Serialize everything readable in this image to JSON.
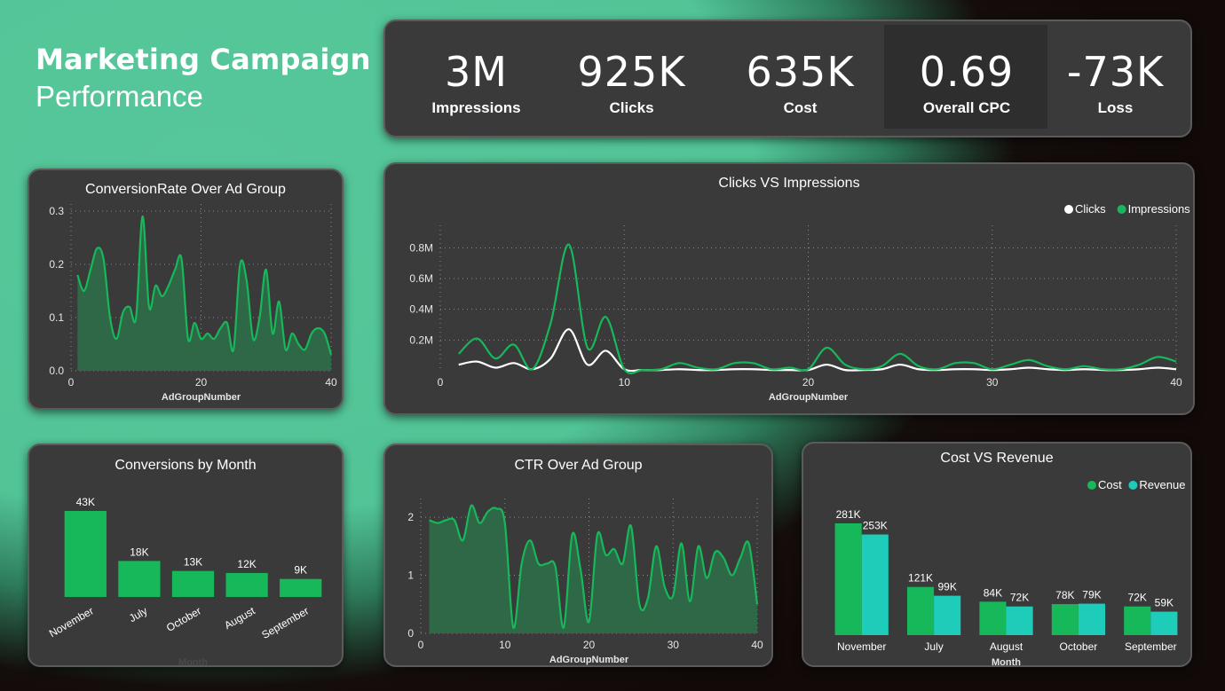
{
  "header": {
    "title": "Marketing Campaign",
    "subtitle": "Performance"
  },
  "kpis": [
    {
      "value": "3M",
      "label": "Impressions"
    },
    {
      "value": "925K",
      "label": "Clicks"
    },
    {
      "value": "635K",
      "label": "Cost"
    },
    {
      "value": "0.69",
      "label": "Overall CPC"
    },
    {
      "value": "-73K",
      "label": "Loss"
    }
  ],
  "colors": {
    "green": "#16b85a",
    "teal": "#1dcdba",
    "white": "#ffffff",
    "card": "#3a3a3a"
  },
  "chart_data": [
    {
      "id": "conv-rate",
      "type": "area",
      "title": "ConversionRate Over Ad Group",
      "xlabel": "AdGroupNumber",
      "ylabel": "",
      "xlim": [
        0,
        40
      ],
      "ylim": [
        0,
        0.3
      ],
      "xticks": [
        0,
        20,
        40
      ],
      "yticks": [
        0.0,
        0.1,
        0.2,
        0.3
      ],
      "ytick_labels": [
        "0.0",
        "0.1",
        "0.2",
        "0.3"
      ],
      "x": [
        1,
        2,
        3,
        4,
        5,
        6,
        7,
        8,
        9,
        10,
        11,
        12,
        13,
        14,
        15,
        16,
        17,
        18,
        19,
        20,
        21,
        22,
        23,
        24,
        25,
        26,
        27,
        28,
        29,
        30,
        31,
        32,
        33,
        34,
        35,
        36,
        37,
        38,
        39,
        40
      ],
      "series": [
        {
          "values": [
            0.18,
            0.15,
            0.19,
            0.23,
            0.21,
            0.1,
            0.06,
            0.11,
            0.12,
            0.1,
            0.29,
            0.12,
            0.16,
            0.14,
            0.16,
            0.19,
            0.21,
            0.06,
            0.09,
            0.06,
            0.07,
            0.06,
            0.08,
            0.09,
            0.04,
            0.2,
            0.17,
            0.06,
            0.1,
            0.19,
            0.07,
            0.13,
            0.04,
            0.07,
            0.05,
            0.04,
            0.07,
            0.08,
            0.07,
            0.03
          ]
        }
      ]
    },
    {
      "id": "clicks-impr",
      "type": "line",
      "title": "Clicks VS Impressions",
      "xlabel": "AdGroupNumber",
      "ylabel": "",
      "xlim": [
        0,
        40
      ],
      "ylim": [
        0,
        0.9
      ],
      "xticks": [
        0,
        10,
        20,
        30,
        40
      ],
      "yticks": [
        0.2,
        0.4,
        0.6,
        0.8
      ],
      "ytick_labels": [
        "0.2M",
        "0.4M",
        "0.6M",
        "0.8M"
      ],
      "legend": "top-right",
      "x": [
        1,
        2,
        3,
        4,
        5,
        6,
        7,
        8,
        9,
        10,
        11,
        12,
        13,
        14,
        15,
        16,
        17,
        18,
        19,
        20,
        21,
        22,
        23,
        24,
        25,
        26,
        27,
        28,
        29,
        30,
        31,
        32,
        33,
        34,
        35,
        36,
        37,
        38,
        39,
        40
      ],
      "series": [
        {
          "name": "Clicks",
          "color": "#ffffff",
          "values": [
            0.04,
            0.06,
            0.02,
            0.05,
            0.01,
            0.08,
            0.27,
            0.04,
            0.13,
            0.01,
            0.005,
            0.005,
            0.01,
            0.005,
            0.005,
            0.01,
            0.01,
            0.005,
            0.005,
            0.005,
            0.04,
            0.005,
            0.005,
            0.01,
            0.04,
            0.01,
            0.005,
            0.01,
            0.01,
            0.005,
            0.01,
            0.02,
            0.01,
            0.005,
            0.01,
            0.005,
            0.005,
            0.01,
            0.02,
            0.01
          ]
        },
        {
          "name": "Impressions",
          "color": "#16b85a",
          "values": [
            0.11,
            0.21,
            0.08,
            0.17,
            0.01,
            0.31,
            0.82,
            0.15,
            0.35,
            0.01,
            0.005,
            0.01,
            0.05,
            0.02,
            0.01,
            0.05,
            0.05,
            0.01,
            0.02,
            0.01,
            0.15,
            0.04,
            0.01,
            0.03,
            0.11,
            0.03,
            0.01,
            0.05,
            0.05,
            0.01,
            0.04,
            0.07,
            0.03,
            0.01,
            0.03,
            0.01,
            0.01,
            0.04,
            0.09,
            0.06
          ]
        }
      ]
    },
    {
      "id": "conv-month",
      "type": "bar",
      "title": "Conversions by Month",
      "xlabel": "Month",
      "ylabel": "",
      "categories": [
        "November",
        "July",
        "October",
        "August",
        "September"
      ],
      "values": [
        43,
        18,
        13,
        12,
        9
      ],
      "data_labels": [
        "43K",
        "18K",
        "13K",
        "12K",
        "9K"
      ],
      "ylim": [
        0,
        43
      ]
    },
    {
      "id": "ctr",
      "type": "area",
      "title": "CTR Over Ad Group",
      "xlabel": "AdGroupNumber",
      "ylabel": "",
      "xlim": [
        0,
        40
      ],
      "ylim": [
        0,
        2.2
      ],
      "xticks": [
        0,
        10,
        20,
        30,
        40
      ],
      "yticks": [
        0,
        1,
        2
      ],
      "ytick_labels": [
        "0",
        "1",
        "2"
      ],
      "x": [
        1,
        2,
        3,
        4,
        5,
        6,
        7,
        8,
        9,
        10,
        11,
        12,
        13,
        14,
        15,
        16,
        17,
        18,
        19,
        20,
        21,
        22,
        23,
        24,
        25,
        26,
        27,
        28,
        29,
        30,
        31,
        32,
        33,
        34,
        35,
        36,
        37,
        38,
        39,
        40
      ],
      "series": [
        {
          "values": [
            1.95,
            1.9,
            1.95,
            1.95,
            1.6,
            2.2,
            1.9,
            2.1,
            2.15,
            1.9,
            0.1,
            1.2,
            1.6,
            1.2,
            1.2,
            1.15,
            0.1,
            1.7,
            1.1,
            0.2,
            1.7,
            1.35,
            1.45,
            1.2,
            1.85,
            0.5,
            0.6,
            1.5,
            0.8,
            0.65,
            1.55,
            0.55,
            1.5,
            0.95,
            1.4,
            1.3,
            1.0,
            1.3,
            1.55,
            0.5
          ]
        }
      ]
    },
    {
      "id": "cost-rev",
      "type": "bar",
      "title": "Cost VS Revenue",
      "xlabel": "Month",
      "ylabel": "",
      "legend": "top-right",
      "categories": [
        "November",
        "July",
        "August",
        "October",
        "September"
      ],
      "series": [
        {
          "name": "Cost",
          "color": "#16b85a",
          "values": [
            281,
            121,
            84,
            78,
            72
          ],
          "data_labels": [
            "281K",
            "121K",
            "84K",
            "78K",
            "72K"
          ]
        },
        {
          "name": "Revenue",
          "color": "#1dcdba",
          "values": [
            253,
            99,
            72,
            79,
            59
          ],
          "data_labels": [
            "253K",
            "99K",
            "72K",
            "79K",
            "59K"
          ]
        }
      ],
      "ylim": [
        0,
        281
      ]
    }
  ]
}
